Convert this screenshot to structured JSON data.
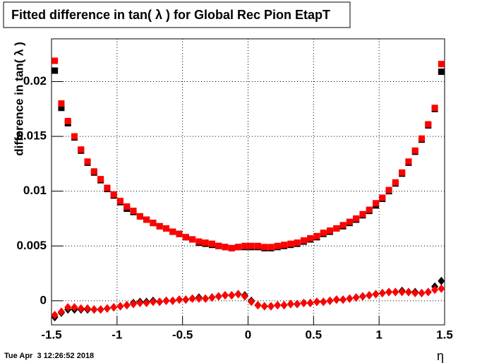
{
  "chart_data": {
    "type": "scatter",
    "title": "Fitted difference in tan( λ ) for Global Rec Pion EtapT",
    "y_label": "difference in tan( λ )",
    "x_label": "η",
    "date": "Tue Apr  3 12:26:52 2018",
    "xlim": [
      -1.5,
      1.5
    ],
    "xticks": [
      -1.5,
      -1,
      -0.5,
      0,
      0.5,
      1,
      1.5
    ],
    "ylim": [
      -0.0022,
      0.0239
    ],
    "yticks": [
      0,
      0.005,
      0.01,
      0.015,
      0.02
    ],
    "grid": true,
    "x": [
      -1.475,
      -1.425,
      -1.375,
      -1.325,
      -1.275,
      -1.225,
      -1.175,
      -1.125,
      -1.075,
      -1.025,
      -0.975,
      -0.925,
      -0.875,
      -0.825,
      -0.775,
      -0.725,
      -0.675,
      -0.625,
      -0.575,
      -0.525,
      -0.475,
      -0.425,
      -0.375,
      -0.325,
      -0.275,
      -0.225,
      -0.175,
      -0.125,
      -0.075,
      -0.025,
      0.025,
      0.075,
      0.125,
      0.175,
      0.225,
      0.275,
      0.325,
      0.375,
      0.425,
      0.475,
      0.525,
      0.575,
      0.625,
      0.675,
      0.725,
      0.775,
      0.825,
      0.875,
      0.925,
      0.975,
      1.025,
      1.075,
      1.125,
      1.175,
      1.225,
      1.275,
      1.325,
      1.375,
      1.425,
      1.475
    ],
    "series": [
      {
        "color": "#000000",
        "marker": "square",
        "values": [
          0.021,
          0.0176,
          0.0162,
          0.0149,
          0.0137,
          0.0126,
          0.0117,
          0.011,
          0.0102,
          0.0096,
          0.009,
          0.0084,
          0.0081,
          0.0077,
          0.0074,
          0.0071,
          0.0068,
          0.0066,
          0.0063,
          0.0061,
          0.0058,
          0.0056,
          0.0053,
          0.0052,
          0.0051,
          0.005,
          0.0049,
          0.0048,
          0.0049,
          0.0049,
          0.0049,
          0.0049,
          0.0048,
          0.0048,
          0.0049,
          0.005,
          0.0051,
          0.0052,
          0.0054,
          0.0056,
          0.0058,
          0.0061,
          0.0063,
          0.0066,
          0.0068,
          0.0071,
          0.0074,
          0.0078,
          0.0082,
          0.0087,
          0.0093,
          0.01,
          0.0107,
          0.0116,
          0.0126,
          0.0136,
          0.0147,
          0.016,
          0.0175,
          0.0209
        ]
      },
      {
        "color": "#ff0000",
        "marker": "square",
        "values": [
          0.0219,
          0.018,
          0.0164,
          0.015,
          0.0138,
          0.0127,
          0.0118,
          0.0111,
          0.0103,
          0.0097,
          0.0091,
          0.0086,
          0.0082,
          0.0077,
          0.0074,
          0.0071,
          0.0068,
          0.0066,
          0.0063,
          0.0061,
          0.0058,
          0.0056,
          0.0054,
          0.0053,
          0.0052,
          0.005,
          0.0049,
          0.0048,
          0.0049,
          0.005,
          0.005,
          0.005,
          0.0049,
          0.0049,
          0.005,
          0.0051,
          0.0052,
          0.0053,
          0.0055,
          0.0057,
          0.0059,
          0.0062,
          0.0064,
          0.0066,
          0.0069,
          0.0072,
          0.0075,
          0.0079,
          0.0083,
          0.0089,
          0.0094,
          0.0101,
          0.0108,
          0.0117,
          0.0127,
          0.0137,
          0.0148,
          0.0161,
          0.0176,
          0.0216
        ]
      },
      {
        "color": "#000000",
        "marker": "diamond",
        "values": [
          -0.0015,
          -0.0011,
          -0.0008,
          -0.0008,
          -0.0008,
          -0.0008,
          -0.0008,
          -0.0008,
          -0.0007,
          -0.0006,
          -0.0005,
          -0.0004,
          -0.0002,
          -0.0001,
          -0.0001,
          0.0,
          -0.0001,
          0.0,
          0.0,
          0.0001,
          0.0001,
          0.0002,
          0.0003,
          0.0002,
          0.0003,
          0.0004,
          0.0005,
          0.0005,
          0.0006,
          0.0005,
          0.0,
          -0.0004,
          -0.0005,
          -0.0005,
          -0.0004,
          -0.0004,
          -0.0003,
          -0.0003,
          -0.0002,
          -0.0002,
          -0.0001,
          -0.0001,
          0.0,
          0.0001,
          0.0001,
          0.0002,
          0.0003,
          0.0004,
          0.0005,
          0.0006,
          0.0007,
          0.0008,
          0.0008,
          0.0009,
          0.0008,
          0.0008,
          0.0007,
          0.0008,
          0.0013,
          0.0018
        ]
      },
      {
        "color": "#ff0000",
        "marker": "diamond",
        "values": [
          -0.0013,
          -0.001,
          -0.0006,
          -0.0006,
          -0.0007,
          -0.0007,
          -0.0008,
          -0.0008,
          -0.0007,
          -0.0006,
          -0.0005,
          -0.0004,
          -0.0003,
          -0.0002,
          -0.0002,
          -0.0001,
          -0.0001,
          0.0,
          0.0,
          0.0001,
          0.0001,
          0.0002,
          0.0002,
          0.0002,
          0.0003,
          0.0004,
          0.0005,
          0.0005,
          0.0006,
          0.0004,
          -0.0001,
          -0.0004,
          -0.0005,
          -0.0005,
          -0.0004,
          -0.0004,
          -0.0003,
          -0.0003,
          -0.0002,
          -0.0002,
          -0.0001,
          -0.0001,
          0.0,
          0.0001,
          0.0001,
          0.0002,
          0.0003,
          0.0004,
          0.0005,
          0.0006,
          0.0007,
          0.0008,
          0.0008,
          0.0008,
          0.0008,
          0.0007,
          0.0007,
          0.0008,
          0.001,
          0.0011
        ]
      }
    ]
  }
}
